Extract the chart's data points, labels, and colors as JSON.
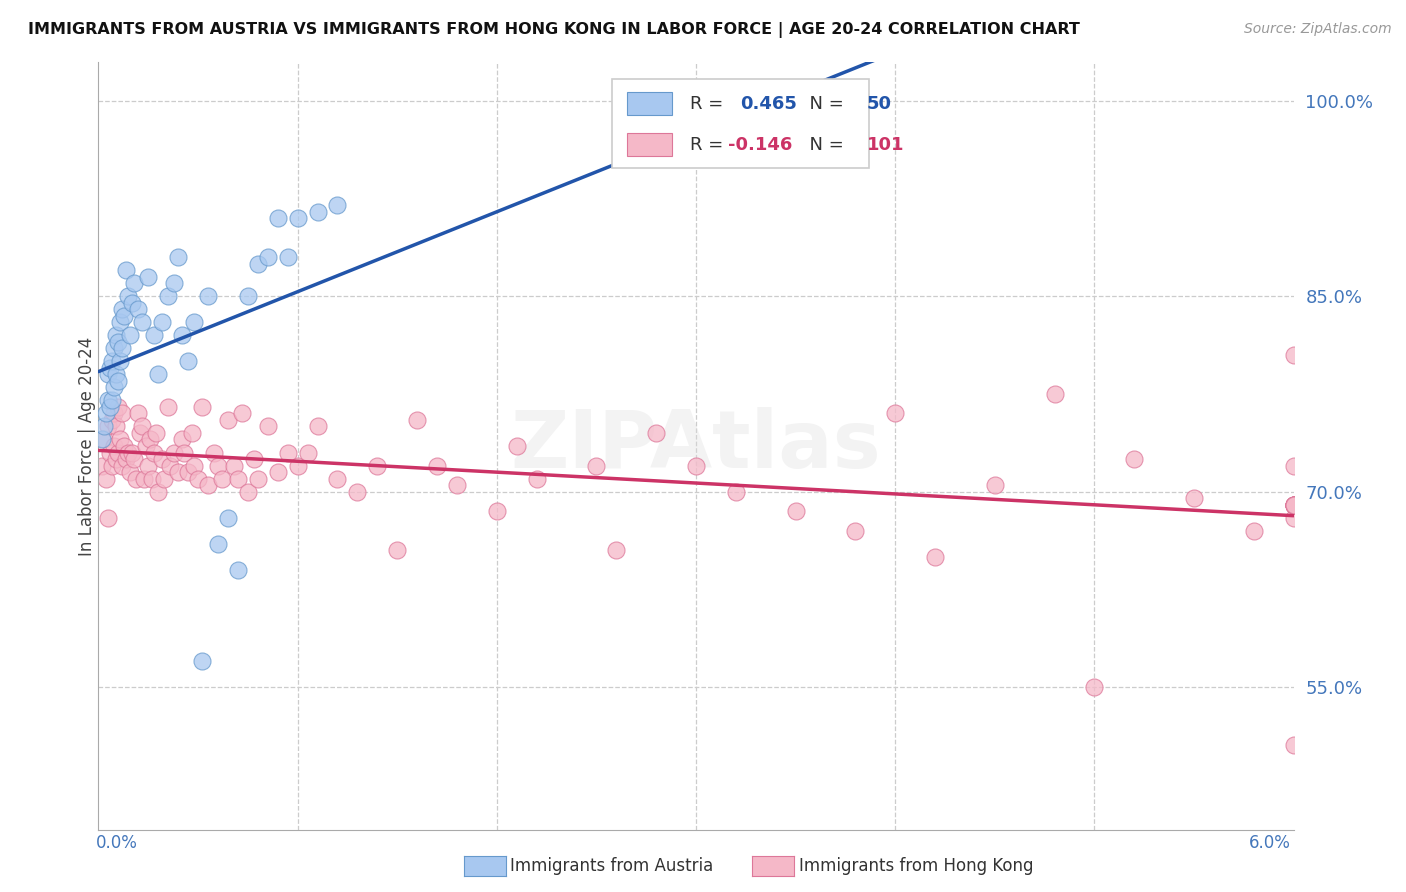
{
  "title": "IMMIGRANTS FROM AUSTRIA VS IMMIGRANTS FROM HONG KONG IN LABOR FORCE | AGE 20-24 CORRELATION CHART",
  "source": "Source: ZipAtlas.com",
  "ylabel": "In Labor Force | Age 20-24",
  "right_yticks": [
    55.0,
    70.0,
    85.0,
    100.0
  ],
  "xmin": 0.0,
  "xmax": 6.0,
  "ymin": 44.0,
  "ymax": 103.0,
  "austria_color": "#A8C8F0",
  "austria_edge": "#6699CC",
  "hongkong_color": "#F5B8C8",
  "hongkong_edge": "#DD7799",
  "austria_line_color": "#2255AA",
  "hongkong_line_color": "#CC3366",
  "austria_R": 0.465,
  "austria_N": 50,
  "hongkong_R": -0.146,
  "hongkong_N": 101,
  "watermark": "ZIPAtlas",
  "austria_x": [
    0.02,
    0.03,
    0.04,
    0.05,
    0.05,
    0.06,
    0.06,
    0.07,
    0.07,
    0.08,
    0.08,
    0.09,
    0.09,
    0.1,
    0.1,
    0.11,
    0.11,
    0.12,
    0.12,
    0.13,
    0.14,
    0.15,
    0.16,
    0.17,
    0.18,
    0.2,
    0.22,
    0.25,
    0.28,
    0.3,
    0.32,
    0.35,
    0.38,
    0.4,
    0.42,
    0.45,
    0.48,
    0.52,
    0.55,
    0.6,
    0.65,
    0.7,
    0.75,
    0.8,
    0.85,
    0.9,
    0.95,
    1.0,
    1.1,
    1.2
  ],
  "austria_y": [
    74.0,
    75.0,
    76.0,
    77.0,
    79.0,
    76.5,
    79.5,
    77.0,
    80.0,
    78.0,
    81.0,
    79.0,
    82.0,
    78.5,
    81.5,
    80.0,
    83.0,
    81.0,
    84.0,
    83.5,
    87.0,
    85.0,
    82.0,
    84.5,
    86.0,
    84.0,
    83.0,
    86.5,
    82.0,
    79.0,
    83.0,
    85.0,
    86.0,
    88.0,
    82.0,
    80.0,
    83.0,
    57.0,
    85.0,
    66.0,
    68.0,
    64.0,
    85.0,
    87.5,
    88.0,
    91.0,
    88.0,
    91.0,
    91.5,
    92.0
  ],
  "hongkong_x": [
    0.02,
    0.03,
    0.04,
    0.05,
    0.05,
    0.06,
    0.07,
    0.07,
    0.08,
    0.08,
    0.09,
    0.09,
    0.1,
    0.1,
    0.11,
    0.12,
    0.12,
    0.13,
    0.14,
    0.15,
    0.16,
    0.17,
    0.18,
    0.19,
    0.2,
    0.21,
    0.22,
    0.23,
    0.24,
    0.25,
    0.26,
    0.27,
    0.28,
    0.29,
    0.3,
    0.32,
    0.33,
    0.35,
    0.36,
    0.38,
    0.4,
    0.42,
    0.43,
    0.45,
    0.47,
    0.48,
    0.5,
    0.52,
    0.55,
    0.58,
    0.6,
    0.62,
    0.65,
    0.68,
    0.7,
    0.72,
    0.75,
    0.78,
    0.8,
    0.85,
    0.9,
    0.95,
    1.0,
    1.05,
    1.1,
    1.2,
    1.3,
    1.4,
    1.5,
    1.6,
    1.7,
    1.8,
    2.0,
    2.1,
    2.2,
    2.5,
    2.6,
    2.8,
    3.0,
    3.2,
    3.5,
    3.8,
    4.0,
    4.2,
    4.5,
    4.8,
    5.0,
    5.2,
    5.5,
    5.8,
    6.0,
    6.0,
    6.0,
    6.0,
    6.0,
    6.0,
    6.0,
    6.0,
    6.0,
    6.0,
    6.0
  ],
  "hongkong_y": [
    72.0,
    74.0,
    71.0,
    75.0,
    68.0,
    73.0,
    72.0,
    75.5,
    73.5,
    76.0,
    72.5,
    75.0,
    73.0,
    76.5,
    74.0,
    72.0,
    76.0,
    73.5,
    72.5,
    73.0,
    71.5,
    73.0,
    72.5,
    71.0,
    76.0,
    74.5,
    75.0,
    71.0,
    73.5,
    72.0,
    74.0,
    71.0,
    73.0,
    74.5,
    70.0,
    72.5,
    71.0,
    76.5,
    72.0,
    73.0,
    71.5,
    74.0,
    73.0,
    71.5,
    74.5,
    72.0,
    71.0,
    76.5,
    70.5,
    73.0,
    72.0,
    71.0,
    75.5,
    72.0,
    71.0,
    76.0,
    70.0,
    72.5,
    71.0,
    75.0,
    71.5,
    73.0,
    72.0,
    73.0,
    75.0,
    71.0,
    70.0,
    72.0,
    65.5,
    75.5,
    72.0,
    70.5,
    68.5,
    73.5,
    71.0,
    72.0,
    65.5,
    74.5,
    72.0,
    70.0,
    68.5,
    67.0,
    76.0,
    65.0,
    70.5,
    77.5,
    55.0,
    72.5,
    69.5,
    67.0,
    80.5,
    72.0,
    68.0,
    50.5,
    69.0,
    69.0,
    69.0,
    69.0,
    69.0,
    69.0,
    69.0
  ]
}
